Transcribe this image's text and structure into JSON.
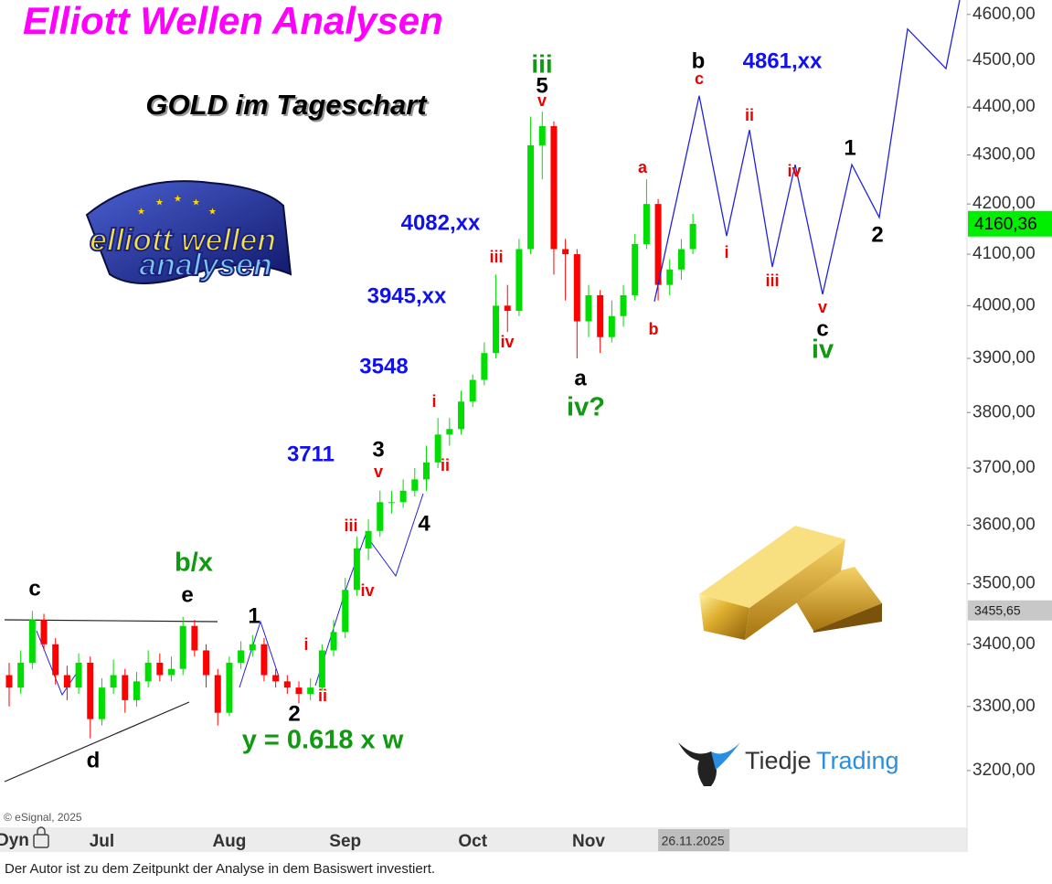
{
  "chart_data": {
    "type": "candlestick",
    "title": "Elliott Wellen Analysen",
    "subtitle": "GOLD im Tageschart",
    "categories": [
      "",
      "",
      "",
      "",
      "",
      "",
      "",
      "",
      "Jul",
      null,
      null,
      null,
      null,
      null,
      null,
      null,
      null,
      null,
      null,
      "Aug",
      null,
      null,
      null,
      null,
      null,
      null,
      null,
      null,
      null,
      "Sep",
      null,
      null,
      null,
      null,
      null,
      null,
      null,
      null,
      null,
      null,
      "Oct",
      null,
      null,
      null,
      null,
      null,
      null,
      null,
      null,
      null,
      "Nov",
      null,
      null,
      null,
      null,
      null,
      null,
      null,
      null,
      "26.11.2025"
    ],
    "open": [
      3350,
      3330,
      3370,
      3440,
      3400,
      3350,
      3330,
      3370,
      3280,
      3330,
      3350,
      3310,
      3340,
      3370,
      3350,
      3360,
      3430,
      3390,
      3350,
      3290,
      3370,
      3390,
      3400,
      3350,
      3340,
      3330,
      3320,
      3330,
      3390,
      3420,
      3490,
      3560,
      3590,
      3640,
      3640,
      3660,
      3680,
      3710,
      3760,
      3770,
      3820,
      3860,
      3910,
      4000,
      3990,
      4110,
      4320,
      4360,
      4110,
      4100,
      3970,
      4020,
      3940,
      3980,
      4020,
      4120,
      4200,
      4040,
      4070,
      4110
    ],
    "high": [
      3370,
      3390,
      3455,
      3450,
      3410,
      3365,
      3385,
      3380,
      3345,
      3375,
      3360,
      3355,
      3390,
      3385,
      3380,
      3445,
      3440,
      3400,
      3360,
      3380,
      3405,
      3415,
      3410,
      3360,
      3350,
      3340,
      3345,
      3400,
      3440,
      3510,
      3580,
      3610,
      3660,
      3660,
      3680,
      3700,
      3740,
      3790,
      3790,
      3840,
      3870,
      3930,
      4060,
      4040,
      4130,
      4380,
      4390,
      4370,
      4130,
      4110,
      4040,
      4030,
      4010,
      4040,
      4140,
      4250,
      4210,
      4090,
      4130,
      4180
    ],
    "low": [
      3300,
      3320,
      3360,
      3390,
      3335,
      3310,
      3320,
      3250,
      3270,
      3320,
      3290,
      3300,
      3330,
      3340,
      3340,
      3350,
      3380,
      3330,
      3270,
      3285,
      3360,
      3380,
      3340,
      3330,
      3320,
      3305,
      3310,
      3325,
      3380,
      3410,
      3480,
      3540,
      3580,
      3620,
      3630,
      3650,
      3660,
      3700,
      3740,
      3760,
      3810,
      3850,
      3900,
      3950,
      3980,
      4100,
      4250,
      4060,
      4010,
      3900,
      3940,
      3910,
      3930,
      3960,
      4010,
      4110,
      4010,
      4020,
      4050,
      4100
    ],
    "close": [
      3330,
      3370,
      3440,
      3400,
      3350,
      3330,
      3370,
      3280,
      3330,
      3350,
      3310,
      3340,
      3370,
      3350,
      3360,
      3430,
      3390,
      3350,
      3290,
      3370,
      3390,
      3400,
      3350,
      3340,
      3330,
      3320,
      3330,
      3390,
      3420,
      3490,
      3560,
      3590,
      3640,
      3640,
      3660,
      3680,
      3710,
      3760,
      3770,
      3820,
      3860,
      3910,
      4000,
      3990,
      4110,
      4320,
      4360,
      4110,
      4100,
      3970,
      4020,
      3940,
      3980,
      4020,
      4120,
      4200,
      4040,
      4070,
      4110,
      4160
    ],
    "up_color": "#00dd00",
    "down_color": "#ff0000",
    "log_scale": true,
    "ylim": [
      3114,
      4632
    ],
    "yticks": [
      {
        "value": 3200,
        "label": "3200,00"
      },
      {
        "value": 3300,
        "label": "3300,00"
      },
      {
        "value": 3400,
        "label": "3400,00"
      },
      {
        "value": 3500,
        "label": "3500,00"
      },
      {
        "value": 3600,
        "label": "3600,00"
      },
      {
        "value": 3700,
        "label": "3700,00"
      },
      {
        "value": 3800,
        "label": "3800,00"
      },
      {
        "value": 3900,
        "label": "3900,00"
      },
      {
        "value": 4000,
        "label": "4000,00"
      },
      {
        "value": 4100,
        "label": "4100,00"
      },
      {
        "value": 4200,
        "label": "4200,00"
      },
      {
        "value": 4300,
        "label": "4300,00"
      },
      {
        "value": 4400,
        "label": "4400,00"
      },
      {
        "value": 4500,
        "label": "4500,00"
      },
      {
        "value": 4600,
        "label": "4600,00"
      }
    ],
    "last_price": {
      "value": 4160.36,
      "label": "4160,36",
      "color": "#00ee00"
    },
    "marker_price": {
      "value": 3455.65,
      "label": "3455,65",
      "color": "#c8c8c8"
    },
    "forecast": {
      "color": "#2222dd",
      "values": [
        4008,
        4424,
        4136,
        4352,
        4075,
        4280,
        4022,
        4280,
        4173,
        4568,
        4482,
        4632
      ]
    },
    "annotations": [
      {
        "text": "c",
        "color": "#000000"
      },
      {
        "text": "d",
        "color": "#000000"
      },
      {
        "text": "e",
        "color": "#000000"
      },
      {
        "text": "1",
        "color": "#000000"
      },
      {
        "text": "2",
        "color": "#000000"
      },
      {
        "text": "3",
        "color": "#000000"
      },
      {
        "text": "4",
        "color": "#000000"
      },
      {
        "text": "5",
        "color": "#000000"
      },
      {
        "text": "a",
        "color": "#000000"
      },
      {
        "text": "b",
        "color": "#000000"
      },
      {
        "text": "c",
        "color": "#000000"
      },
      {
        "text": "1",
        "color": "#000000"
      },
      {
        "text": "2",
        "color": "#000000"
      },
      {
        "text": "b/x",
        "color": "#119911"
      },
      {
        "text": "iii",
        "color": "#119911"
      },
      {
        "text": "iv?",
        "color": "#119911"
      },
      {
        "text": "iv",
        "color": "#119911"
      },
      {
        "text": "y = 0.618 x w",
        "color": "#119911"
      },
      {
        "text": "i",
        "color": "#ee0000"
      },
      {
        "text": "ii",
        "color": "#ee0000"
      },
      {
        "text": "iii",
        "color": "#ee0000"
      },
      {
        "text": "iv",
        "color": "#ee0000"
      },
      {
        "text": "v",
        "color": "#ee0000"
      },
      {
        "text": "i",
        "color": "#ee0000"
      },
      {
        "text": "ii",
        "color": "#ee0000"
      },
      {
        "text": "iii",
        "color": "#ee0000"
      },
      {
        "text": "iv",
        "color": "#ee0000"
      },
      {
        "text": "v",
        "color": "#ee0000"
      },
      {
        "text": "a",
        "color": "#ee0000"
      },
      {
        "text": "b",
        "color": "#ee0000"
      },
      {
        "text": "c",
        "color": "#ee0000"
      },
      {
        "text": "ii",
        "color": "#ee0000"
      },
      {
        "text": "i",
        "color": "#ee0000"
      },
      {
        "text": "iv",
        "color": "#ee0000"
      },
      {
        "text": "iii",
        "color": "#ee0000"
      },
      {
        "text": "v",
        "color": "#ee0000"
      },
      {
        "text": "4082,xx",
        "color": "#1111ee"
      },
      {
        "text": "3945,xx",
        "color": "#1111ee"
      },
      {
        "text": "3548",
        "color": "#1111ee"
      },
      {
        "text": "3711",
        "color": "#1111ee"
      },
      {
        "text": "4861,xx",
        "color": "#1111ee"
      }
    ],
    "source": "© eSignal, 2025",
    "mode_label": "Dyn"
  },
  "logos": {
    "elliott": [
      "elliott wellen",
      "analysen"
    ],
    "tiedje": [
      "Tiedje",
      "Trading"
    ]
  },
  "footer": "Der Autor ist zu dem Zeitpunkt der Analyse in dem Basiswert investiert."
}
